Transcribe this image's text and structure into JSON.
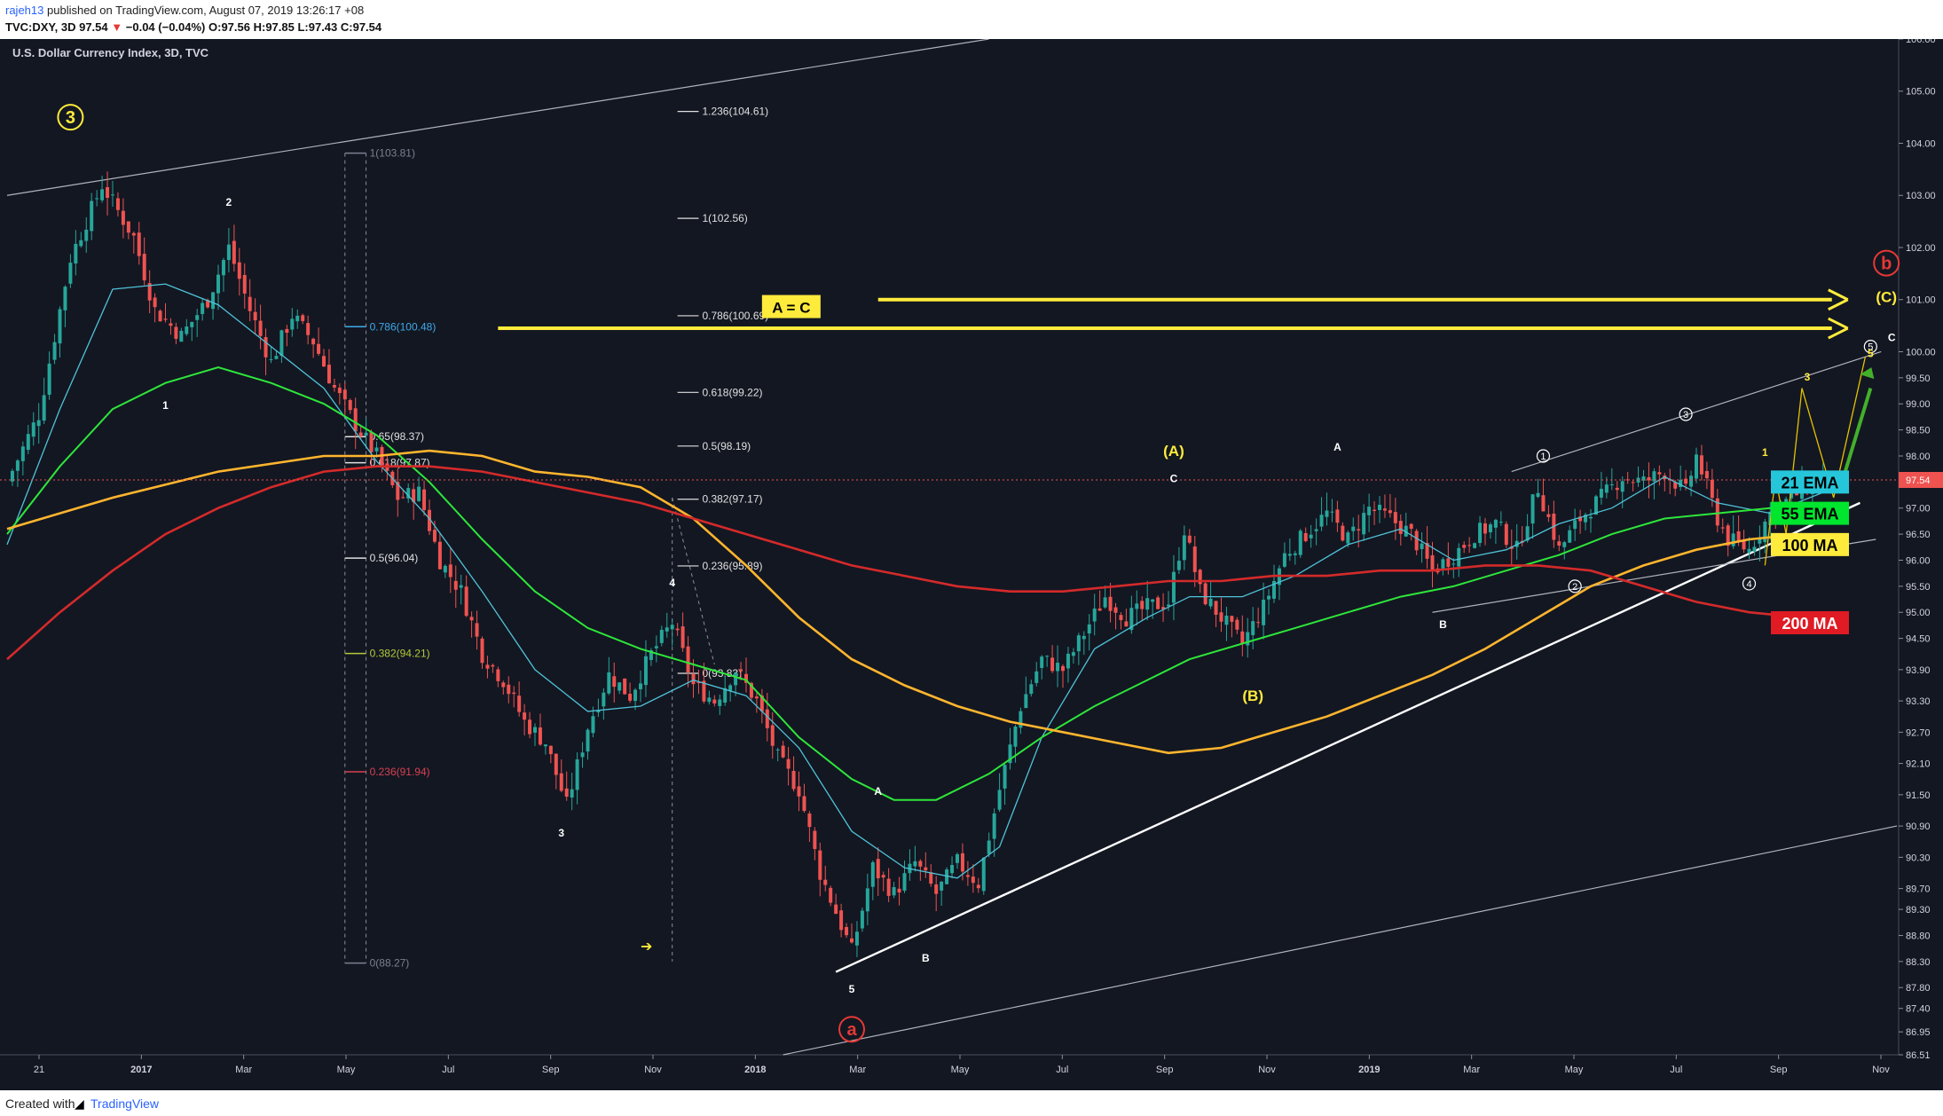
{
  "header": {
    "user": "rajeh13",
    "published": "published on TradingView.com, August 07, 2019 13:26:17 +08",
    "symbol": "TVC:DXY, 3D",
    "last": "97.54",
    "change": "−0.04 (−0.04%)",
    "ohlc": "O:97.56 H:97.85 L:97.43 C:97.54"
  },
  "footer": {
    "created": "Created with",
    "brand": "TradingView"
  },
  "chart_data": {
    "type": "candlestick",
    "title": "U.S. Dollar Currency Index, 3D, TVC",
    "price_label": "97.54",
    "ylim": [
      86.51,
      106.0
    ],
    "y_ticks": [
      "106.00",
      "105.00",
      "104.00",
      "103.00",
      "102.00",
      "101.00",
      "100.00",
      "99.50",
      "99.00",
      "98.50",
      "98.00",
      "97.50",
      "97.00",
      "96.50",
      "96.00",
      "95.50",
      "95.00",
      "94.50",
      "93.90",
      "93.30",
      "92.70",
      "92.10",
      "91.50",
      "90.90",
      "90.30",
      "89.70",
      "89.30",
      "88.80",
      "88.30",
      "87.80",
      "87.40",
      "86.95",
      "86.51"
    ],
    "x_ticks": [
      "21",
      "2017",
      "Mar",
      "May",
      "Jul",
      "Sep",
      "Nov",
      "2018",
      "Mar",
      "May",
      "Jul",
      "Sep",
      "Nov",
      "2019",
      "Mar",
      "May",
      "Jul",
      "Sep",
      "Nov"
    ],
    "price_path": [
      [
        0,
        97.5
      ],
      [
        6,
        98.8
      ],
      [
        12,
        101.8
      ],
      [
        18,
        103.2
      ],
      [
        24,
        102.2
      ],
      [
        28,
        100.8
      ],
      [
        33,
        100.3
      ],
      [
        38,
        101.0
      ],
      [
        42,
        102.0
      ],
      [
        46,
        100.8
      ],
      [
        50,
        99.8
      ],
      [
        54,
        100.7
      ],
      [
        58,
        100.2
      ],
      [
        62,
        99.3
      ],
      [
        66,
        98.6
      ],
      [
        70,
        98.0
      ],
      [
        74,
        97.2
      ],
      [
        78,
        97.3
      ],
      [
        82,
        96.0
      ],
      [
        86,
        95.4
      ],
      [
        90,
        94.2
      ],
      [
        94,
        93.7
      ],
      [
        98,
        92.9
      ],
      [
        102,
        92.5
      ],
      [
        106,
        91.3
      ],
      [
        110,
        92.8
      ],
      [
        114,
        93.8
      ],
      [
        118,
        93.4
      ],
      [
        122,
        94.2
      ],
      [
        126,
        94.8
      ],
      [
        130,
        93.6
      ],
      [
        134,
        93.3
      ],
      [
        138,
        93.9
      ],
      [
        142,
        93.3
      ],
      [
        146,
        92.2
      ],
      [
        150,
        91.6
      ],
      [
        154,
        90.0
      ],
      [
        158,
        89.0
      ],
      [
        160,
        88.5
      ],
      [
        164,
        90.1
      ],
      [
        168,
        89.6
      ],
      [
        172,
        90.2
      ],
      [
        176,
        89.6
      ],
      [
        180,
        90.2
      ],
      [
        184,
        89.8
      ],
      [
        188,
        91.6
      ],
      [
        192,
        93.2
      ],
      [
        196,
        94.1
      ],
      [
        200,
        93.9
      ],
      [
        204,
        94.6
      ],
      [
        208,
        95.3
      ],
      [
        212,
        94.9
      ],
      [
        216,
        95.1
      ],
      [
        220,
        95.2
      ],
      [
        223,
        96.6
      ],
      [
        226,
        95.4
      ],
      [
        230,
        94.9
      ],
      [
        234,
        94.4
      ],
      [
        238,
        95.1
      ],
      [
        242,
        96.1
      ],
      [
        246,
        96.5
      ],
      [
        250,
        96.9
      ],
      [
        254,
        96.4
      ],
      [
        258,
        97.0
      ],
      [
        262,
        96.8
      ],
      [
        266,
        96.5
      ],
      [
        270,
        95.8
      ],
      [
        274,
        96.1
      ],
      [
        278,
        96.5
      ],
      [
        282,
        96.7
      ],
      [
        286,
        96.2
      ],
      [
        290,
        97.4
      ],
      [
        294,
        96.2
      ],
      [
        298,
        96.8
      ],
      [
        302,
        97.2
      ],
      [
        306,
        97.6
      ],
      [
        310,
        97.5
      ],
      [
        314,
        97.7
      ],
      [
        318,
        97.3
      ],
      [
        320,
        98.0
      ],
      [
        324,
        96.8
      ],
      [
        326,
        96.4
      ],
      [
        330,
        96.2
      ],
      [
        334,
        96.9
      ],
      [
        338,
        97.2
      ],
      [
        342,
        97.5
      ],
      [
        344,
        97.54
      ]
    ],
    "series": [
      {
        "name": "21 EMA",
        "values": [
          [
            0,
            96.3
          ],
          [
            10,
            98.9
          ],
          [
            20,
            101.2
          ],
          [
            30,
            101.3
          ],
          [
            40,
            100.9
          ],
          [
            50,
            100.1
          ],
          [
            60,
            99.3
          ],
          [
            70,
            97.9
          ],
          [
            80,
            96.8
          ],
          [
            90,
            95.4
          ],
          [
            100,
            93.9
          ],
          [
            110,
            93.1
          ],
          [
            120,
            93.2
          ],
          [
            130,
            93.7
          ],
          [
            140,
            93.4
          ],
          [
            150,
            92.4
          ],
          [
            160,
            90.8
          ],
          [
            170,
            90.1
          ],
          [
            180,
            89.9
          ],
          [
            188,
            90.5
          ],
          [
            196,
            92.6
          ],
          [
            206,
            94.3
          ],
          [
            216,
            94.9
          ],
          [
            224,
            95.3
          ],
          [
            234,
            95.3
          ],
          [
            244,
            95.7
          ],
          [
            254,
            96.3
          ],
          [
            264,
            96.6
          ],
          [
            274,
            96.0
          ],
          [
            284,
            96.2
          ],
          [
            294,
            96.7
          ],
          [
            304,
            97.0
          ],
          [
            314,
            97.6
          ],
          [
            324,
            97.1
          ],
          [
            334,
            96.9
          ],
          [
            344,
            97.3
          ]
        ]
      },
      {
        "name": "55 EMA",
        "values": [
          [
            0,
            96.5
          ],
          [
            10,
            97.8
          ],
          [
            20,
            98.9
          ],
          [
            30,
            99.4
          ],
          [
            40,
            99.7
          ],
          [
            50,
            99.4
          ],
          [
            60,
            99.0
          ],
          [
            70,
            98.4
          ],
          [
            80,
            97.5
          ],
          [
            90,
            96.4
          ],
          [
            100,
            95.4
          ],
          [
            110,
            94.7
          ],
          [
            120,
            94.3
          ],
          [
            130,
            94.0
          ],
          [
            140,
            93.7
          ],
          [
            150,
            92.6
          ],
          [
            160,
            91.8
          ],
          [
            168,
            91.4
          ],
          [
            176,
            91.4
          ],
          [
            186,
            91.9
          ],
          [
            196,
            92.6
          ],
          [
            206,
            93.2
          ],
          [
            216,
            93.7
          ],
          [
            224,
            94.1
          ],
          [
            234,
            94.4
          ],
          [
            244,
            94.7
          ],
          [
            254,
            95.0
          ],
          [
            264,
            95.3
          ],
          [
            274,
            95.5
          ],
          [
            284,
            95.8
          ],
          [
            294,
            96.1
          ],
          [
            304,
            96.5
          ],
          [
            314,
            96.8
          ],
          [
            324,
            96.9
          ],
          [
            334,
            97.0
          ],
          [
            344,
            97.1
          ]
        ]
      },
      {
        "name": "100 MA",
        "values": [
          [
            0,
            96.6
          ],
          [
            20,
            97.2
          ],
          [
            40,
            97.7
          ],
          [
            60,
            98.0
          ],
          [
            70,
            98.0
          ],
          [
            80,
            98.1
          ],
          [
            90,
            98.0
          ],
          [
            100,
            97.7
          ],
          [
            110,
            97.6
          ],
          [
            120,
            97.4
          ],
          [
            130,
            96.8
          ],
          [
            140,
            95.9
          ],
          [
            150,
            94.9
          ],
          [
            160,
            94.1
          ],
          [
            170,
            93.6
          ],
          [
            180,
            93.2
          ],
          [
            190,
            92.9
          ],
          [
            200,
            92.7
          ],
          [
            210,
            92.5
          ],
          [
            220,
            92.3
          ],
          [
            230,
            92.4
          ],
          [
            240,
            92.7
          ],
          [
            250,
            93.0
          ],
          [
            260,
            93.4
          ],
          [
            270,
            93.8
          ],
          [
            280,
            94.3
          ],
          [
            290,
            94.9
          ],
          [
            300,
            95.5
          ],
          [
            310,
            95.9
          ],
          [
            320,
            96.2
          ],
          [
            330,
            96.4
          ],
          [
            340,
            96.5
          ]
        ]
      },
      {
        "name": "200 MA",
        "values": [
          [
            0,
            94.1
          ],
          [
            10,
            95.0
          ],
          [
            20,
            95.8
          ],
          [
            30,
            96.5
          ],
          [
            40,
            97.0
          ],
          [
            50,
            97.4
          ],
          [
            60,
            97.7
          ],
          [
            70,
            97.8
          ],
          [
            80,
            97.8
          ],
          [
            90,
            97.7
          ],
          [
            100,
            97.5
          ],
          [
            110,
            97.3
          ],
          [
            120,
            97.1
          ],
          [
            130,
            96.8
          ],
          [
            140,
            96.5
          ],
          [
            150,
            96.2
          ],
          [
            160,
            95.9
          ],
          [
            170,
            95.7
          ],
          [
            180,
            95.5
          ],
          [
            190,
            95.4
          ],
          [
            200,
            95.4
          ],
          [
            210,
            95.5
          ],
          [
            220,
            95.6
          ],
          [
            230,
            95.6
          ],
          [
            240,
            95.7
          ],
          [
            250,
            95.7
          ],
          [
            260,
            95.8
          ],
          [
            270,
            95.8
          ],
          [
            280,
            95.9
          ],
          [
            290,
            95.9
          ],
          [
            300,
            95.8
          ],
          [
            310,
            95.5
          ],
          [
            320,
            95.2
          ],
          [
            330,
            95.0
          ],
          [
            340,
            94.9
          ]
        ]
      }
    ],
    "legend": [
      {
        "label": "21 EMA",
        "color": "#26c6da",
        "text_color": "#000000",
        "y": 97.5
      },
      {
        "label": "55 EMA",
        "color": "#00e62e",
        "text_color": "#000000",
        "y": 96.9
      },
      {
        "label": "100 MA",
        "color": "#ffeb3b",
        "text_color": "#000000",
        "y": 96.3
      },
      {
        "label": "200 MA",
        "color": "#e01b24",
        "text_color": "#ffffff",
        "y": 94.8
      }
    ],
    "fib_left": [
      {
        "label": "1(103.81)",
        "y": 103.81,
        "color": "#7b8090"
      },
      {
        "label": "0.786(100.48)",
        "y": 100.48,
        "color": "#3fa9e8"
      },
      {
        "label": "0.65(98.37)",
        "y": 98.37,
        "color": "#e0e0e0"
      },
      {
        "label": "0.618(97.87)",
        "y": 97.87,
        "color": "#e0e0e0"
      },
      {
        "label": "0.5(96.04)",
        "y": 96.04,
        "color": "#e0e0e0"
      },
      {
        "label": "0.382(94.21)",
        "y": 94.21,
        "color": "#b5c93a"
      },
      {
        "label": "0.236(91.94)",
        "y": 91.94,
        "color": "#d84050"
      },
      {
        "label": "0(88.27)",
        "y": 88.27,
        "color": "#7b8090"
      }
    ],
    "fib_right": [
      {
        "label": "1.236(104.61)",
        "y": 104.61
      },
      {
        "label": "1(102.56)",
        "y": 102.56
      },
      {
        "label": "0.786(100.69)",
        "y": 100.69
      },
      {
        "label": "0.618(99.22)",
        "y": 99.22
      },
      {
        "label": "0.5(98.19)",
        "y": 98.19
      },
      {
        "label": "0.382(97.17)",
        "y": 97.17
      },
      {
        "label": "0.236(95.89)",
        "y": 95.89
      },
      {
        "label": "0(93.83)",
        "y": 93.83
      }
    ],
    "annotations": [
      {
        "text": "3",
        "x": 12,
        "y": 104.5,
        "color": "#ffeb3b",
        "circled": true
      },
      {
        "text": "2",
        "x": 42,
        "y": 102.8,
        "color": "#ffffff"
      },
      {
        "text": "1",
        "x": 30,
        "y": 98.9,
        "color": "#ffffff"
      },
      {
        "text": "4",
        "x": 126,
        "y": 95.5,
        "color": "#ffffff"
      },
      {
        "text": "3",
        "x": 105,
        "y": 90.7,
        "color": "#ffffff"
      },
      {
        "text": "5",
        "x": 160,
        "y": 87.7,
        "color": "#ffffff"
      },
      {
        "text": "a",
        "x": 160,
        "y": 87.0,
        "color": "#e53935",
        "circled": true
      },
      {
        "text": "A",
        "x": 165,
        "y": 91.5,
        "color": "#ffffff"
      },
      {
        "text": "B",
        "x": 174,
        "y": 88.3,
        "color": "#ffffff"
      },
      {
        "text": "(A)",
        "x": 221,
        "y": 98.0,
        "color": "#ffeb3b"
      },
      {
        "text": "C",
        "x": 221,
        "y": 97.5,
        "color": "#ffffff"
      },
      {
        "text": "(B)",
        "x": 236,
        "y": 93.3,
        "color": "#ffeb3b"
      },
      {
        "text": "A",
        "x": 252,
        "y": 98.1,
        "color": "#ffffff"
      },
      {
        "text": "B",
        "x": 272,
        "y": 94.7,
        "color": "#ffffff"
      },
      {
        "text": "1",
        "x": 291,
        "y": 98.0,
        "color": "#ffffff",
        "circled": true
      },
      {
        "text": "2",
        "x": 297,
        "y": 95.5,
        "color": "#ffffff",
        "circled": true
      },
      {
        "text": "3",
        "x": 318,
        "y": 98.8,
        "color": "#ffffff",
        "circled": true
      },
      {
        "text": "4",
        "x": 330,
        "y": 95.55,
        "color": "#ffffff",
        "circled": true
      },
      {
        "text": "1",
        "x": 333,
        "y": 98.0,
        "color": "#ffeb3b"
      },
      {
        "text": "2",
        "x": 336,
        "y": 96.3,
        "color": "#ffffff"
      },
      {
        "text": "3",
        "x": 341,
        "y": 99.45,
        "color": "#ffeb3b"
      },
      {
        "text": "4",
        "x": 346,
        "y": 96.95,
        "color": "#ffeb3b"
      },
      {
        "text": "5",
        "x": 353,
        "y": 100.1,
        "color": "#ffffff",
        "circled": true
      },
      {
        "text": "5",
        "x": 353,
        "y": 99.9,
        "color": "#ffeb3b"
      },
      {
        "text": "C",
        "x": 357,
        "y": 100.2,
        "color": "#ffffff"
      },
      {
        "text": "(C)",
        "x": 356,
        "y": 100.95,
        "color": "#ffeb3b"
      },
      {
        "text": "b",
        "x": 356,
        "y": 101.7,
        "color": "#e53935",
        "circled": true
      }
    ],
    "callout": {
      "text": "A = C",
      "y": 100.85
    }
  }
}
